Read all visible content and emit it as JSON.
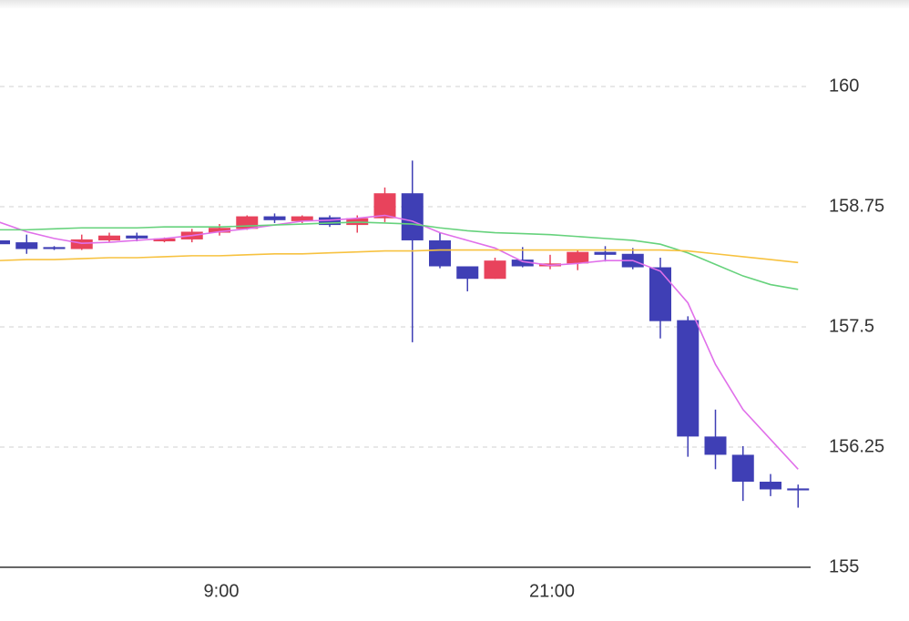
{
  "chart_data": {
    "type": "candlestick",
    "categories": [
      null,
      null,
      null,
      null,
      null,
      null,
      null,
      null,
      "9:00",
      null,
      null,
      null,
      null,
      null,
      null,
      null,
      null,
      null,
      null,
      null,
      "21:00",
      null,
      null,
      null,
      null,
      null,
      null,
      null,
      null,
      null
    ],
    "open": [
      158.4,
      158.38,
      158.33,
      158.31,
      158.4,
      158.45,
      158.39,
      158.41,
      158.48,
      158.52,
      158.65,
      158.6,
      158.64,
      158.56,
      158.63,
      158.89,
      158.4,
      158.13,
      158.0,
      158.2,
      158.13,
      158.16,
      158.28,
      158.26,
      158.12,
      157.57,
      156.36,
      156.17,
      155.89,
      155.82
    ],
    "high": [
      158.41,
      158.46,
      158.34,
      158.46,
      158.48,
      158.48,
      158.43,
      158.52,
      158.57,
      158.66,
      158.68,
      158.66,
      158.66,
      158.66,
      158.95,
      159.23,
      158.48,
      158.13,
      158.22,
      158.33,
      158.25,
      158.3,
      158.34,
      158.32,
      158.22,
      157.61,
      156.64,
      156.26,
      155.97,
      155.86
    ],
    "low": [
      158.35,
      158.26,
      158.3,
      158.3,
      158.38,
      158.39,
      158.38,
      158.38,
      158.45,
      158.51,
      158.58,
      158.58,
      158.54,
      158.48,
      158.59,
      157.34,
      158.11,
      157.87,
      158.0,
      158.12,
      158.1,
      158.09,
      158.18,
      158.1,
      157.38,
      156.15,
      156.02,
      155.69,
      155.74,
      155.62
    ],
    "close": [
      158.36,
      158.31,
      158.31,
      158.41,
      158.45,
      158.42,
      158.42,
      158.49,
      158.53,
      158.65,
      158.61,
      158.65,
      158.56,
      158.63,
      158.89,
      158.4,
      158.13,
      158.0,
      158.19,
      158.13,
      158.16,
      158.28,
      158.25,
      158.12,
      157.56,
      156.36,
      156.17,
      155.89,
      155.81,
      155.8
    ],
    "up_color": "#e8435c",
    "down_color": "#3f3fb5",
    "series": [
      {
        "color": "#e070ea",
        "values": [
          158.59,
          158.49,
          158.42,
          158.37,
          158.38,
          158.4,
          158.42,
          158.45,
          158.49,
          158.52,
          158.56,
          158.6,
          158.61,
          158.63,
          158.66,
          158.6,
          158.48,
          158.4,
          158.32,
          158.18,
          158.14,
          158.16,
          158.19,
          158.19,
          158.08,
          157.75,
          157.11,
          156.64,
          156.33,
          156.02
        ]
      },
      {
        "color": "#66d27c",
        "values": [
          158.51,
          158.51,
          158.52,
          158.53,
          158.53,
          158.53,
          158.54,
          158.54,
          158.54,
          158.55,
          158.56,
          158.57,
          158.58,
          158.59,
          158.58,
          158.57,
          158.53,
          158.5,
          158.48,
          158.47,
          158.46,
          158.44,
          158.42,
          158.4,
          158.36,
          158.27,
          158.15,
          158.03,
          157.94,
          157.89
        ]
      },
      {
        "color": "#f7c240",
        "values": [
          158.19,
          158.2,
          158.2,
          158.21,
          158.22,
          158.22,
          158.23,
          158.24,
          158.24,
          158.25,
          158.26,
          158.26,
          158.27,
          158.28,
          158.29,
          158.29,
          158.3,
          158.3,
          158.3,
          158.3,
          158.3,
          158.3,
          158.3,
          158.3,
          158.3,
          158.29,
          158.26,
          158.23,
          158.2,
          158.17
        ]
      }
    ],
    "ylim": [
      155,
      160.9
    ],
    "yticks": [
      155,
      156.25,
      157.5,
      158.75,
      160
    ],
    "grid": true
  }
}
